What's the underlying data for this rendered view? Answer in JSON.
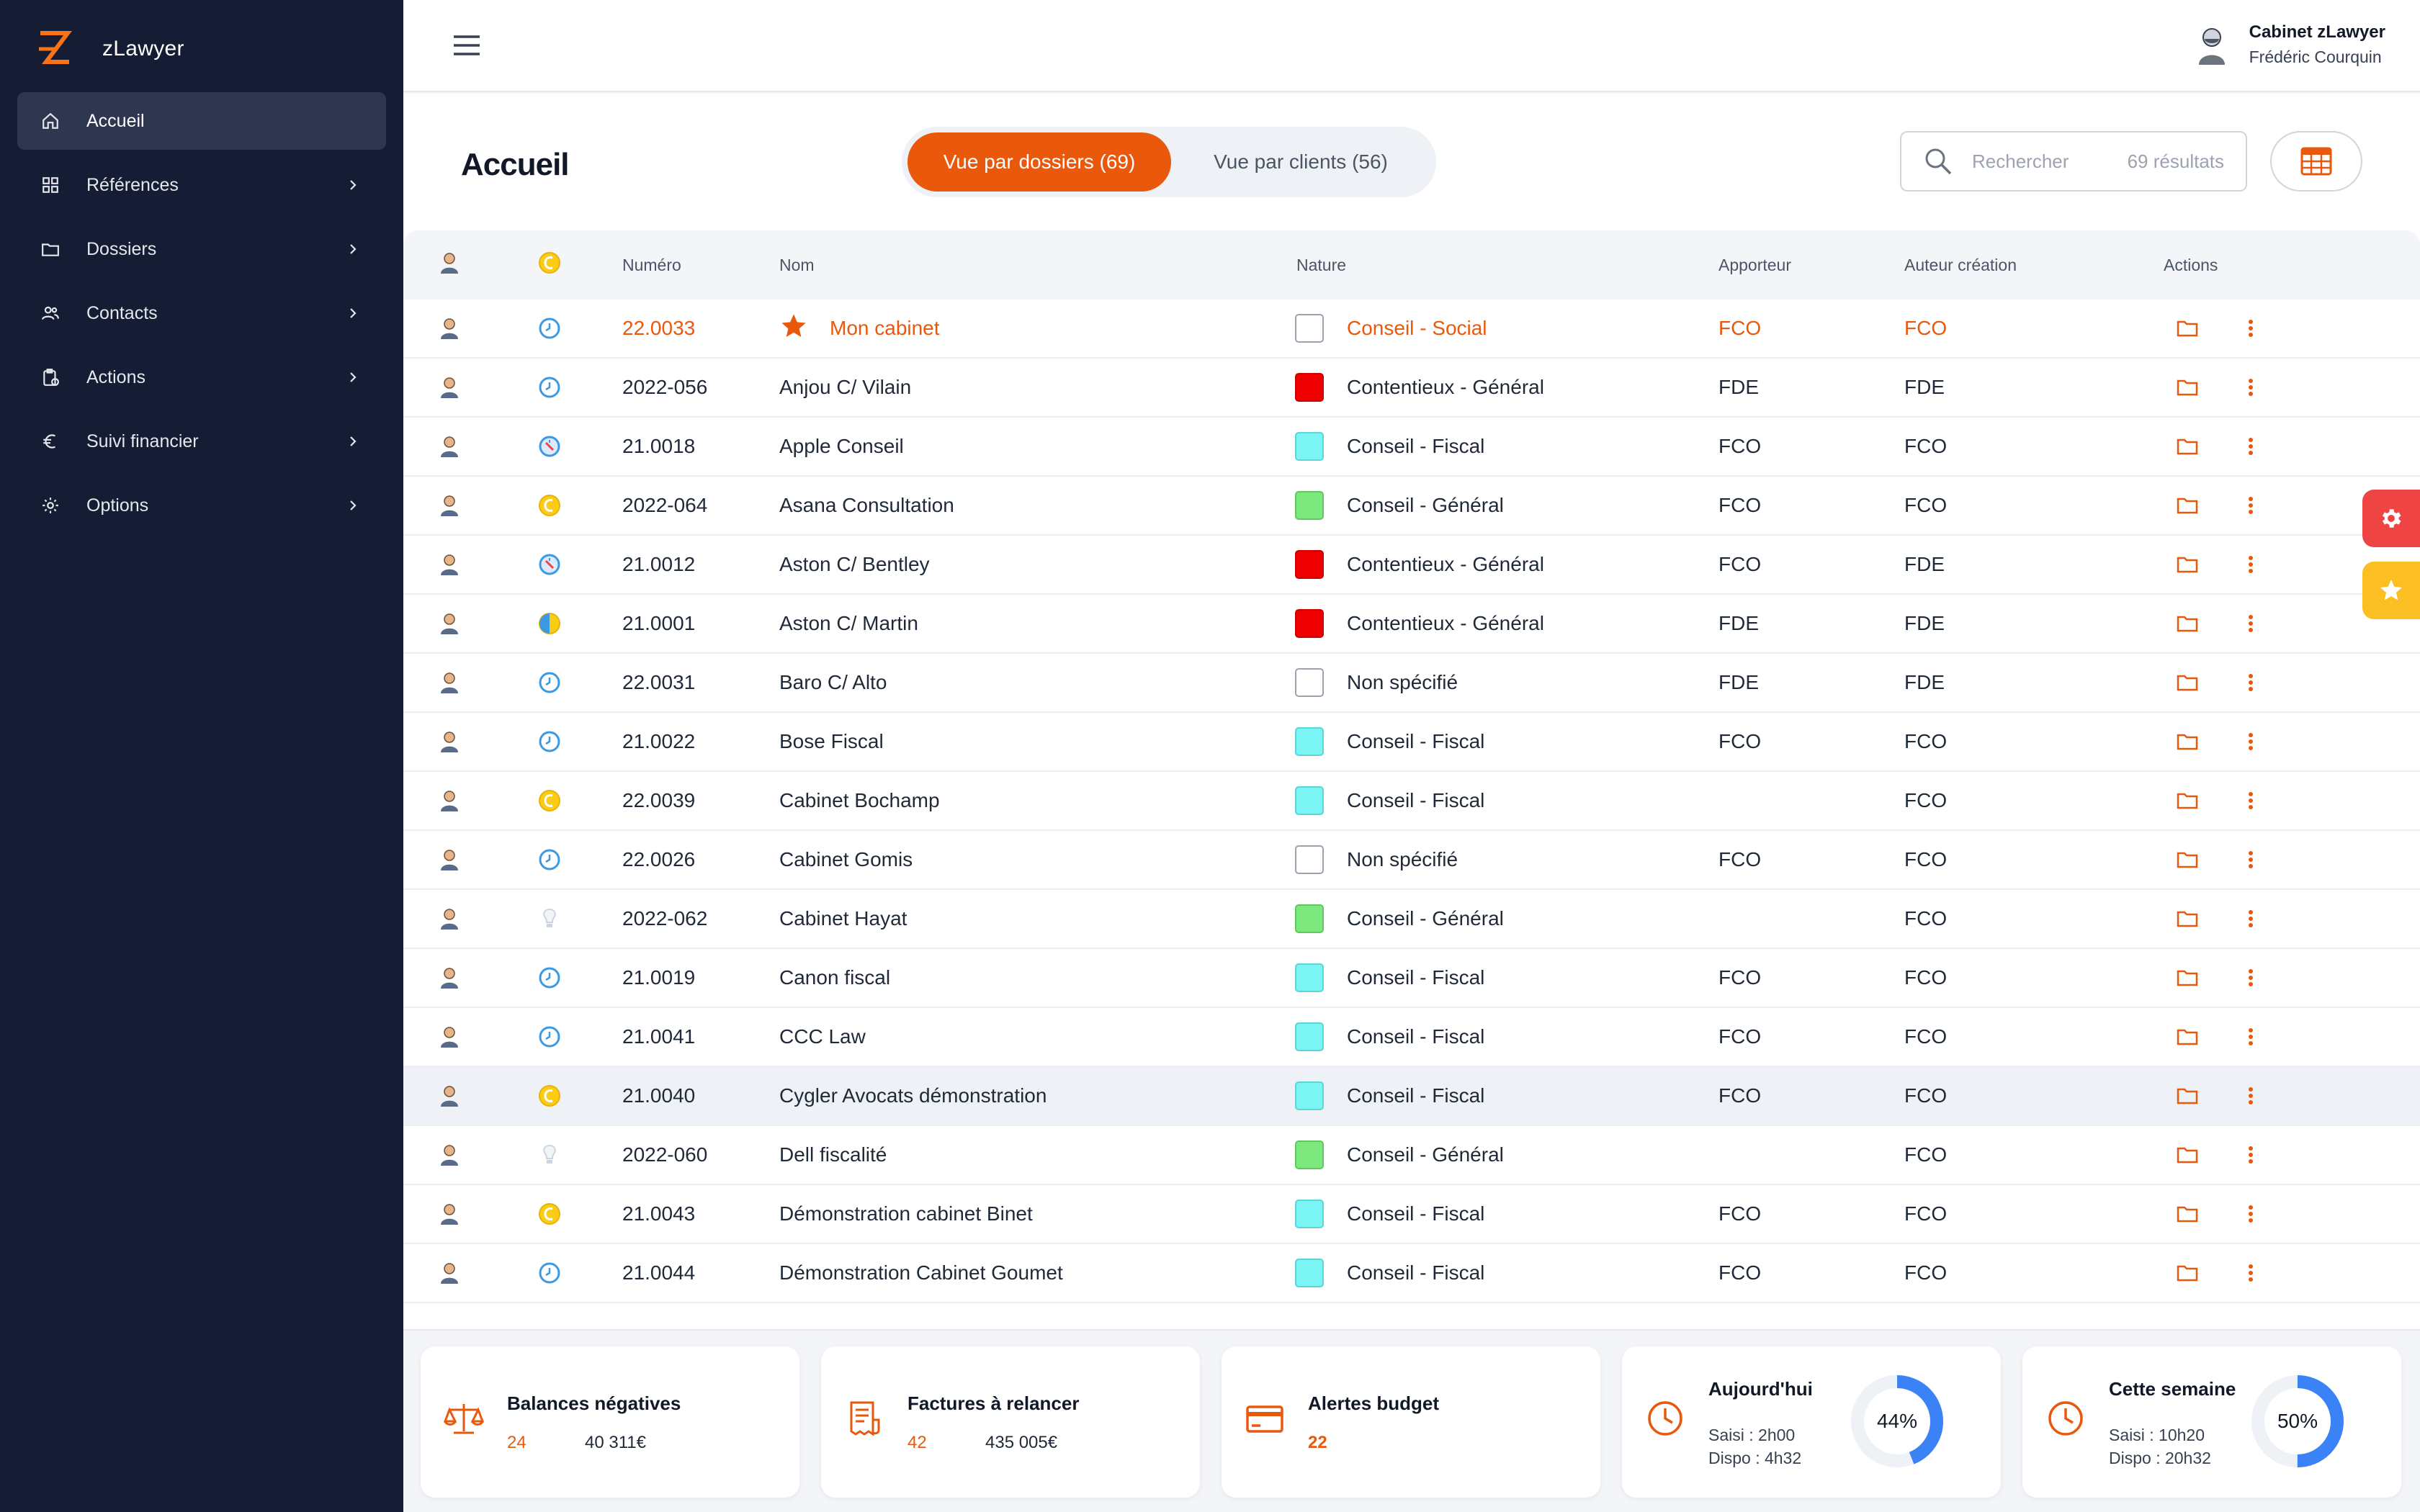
{
  "app": {
    "name": "zLawyer"
  },
  "colors": {
    "sidebar": "#151d35",
    "accent": "#ea580c",
    "primary_blue": "#3b82f6"
  },
  "sidebar": {
    "items": [
      {
        "label": "Accueil",
        "icon": "home-icon",
        "active": true
      },
      {
        "label": "Références",
        "icon": "grid-icon"
      },
      {
        "label": "Dossiers",
        "icon": "folder-icon"
      },
      {
        "label": "Contacts",
        "icon": "users-icon"
      },
      {
        "label": "Actions",
        "icon": "clipboard-icon"
      },
      {
        "label": "Suivi financier",
        "icon": "euro-icon"
      },
      {
        "label": "Options",
        "icon": "gear-icon"
      }
    ]
  },
  "header": {
    "cabinet": "Cabinet zLawyer",
    "user": "Frédéric Courquin"
  },
  "main": {
    "title": "Accueil",
    "tabs": [
      {
        "label": "Vue par dossiers (69)",
        "active": true
      },
      {
        "label": "Vue par clients (56)",
        "active": false
      }
    ],
    "search": {
      "placeholder": "Rechercher",
      "count": "69 résultats"
    }
  },
  "table": {
    "columns": {
      "numero": "Numéro",
      "nom": "Nom",
      "nature": "Nature",
      "apporteur": "Apporteur",
      "auteur": "Auteur création",
      "actions": "Actions"
    },
    "rows": [
      {
        "num": "22.0033",
        "nom": "Mon cabinet",
        "nature": "Conseil - Social",
        "color": "white",
        "apporteur": "FCO",
        "auteur": "FCO",
        "status": "clock",
        "own": true
      },
      {
        "num": "2022-056",
        "nom": "Anjou C/ Vilain",
        "nature": "Contentieux - Général",
        "color": "red",
        "apporteur": "FDE",
        "auteur": "FDE",
        "status": "clock"
      },
      {
        "num": "21.0018",
        "nom": "Apple Conseil",
        "nature": "Conseil - Fiscal",
        "color": "cyan",
        "apporteur": "FCO",
        "auteur": "FCO",
        "status": "compass"
      },
      {
        "num": "2022-064",
        "nom": "Asana Consultation",
        "nature": "Conseil - Général",
        "color": "green",
        "apporteur": "FCO",
        "auteur": "FCO",
        "status": "coin"
      },
      {
        "num": "21.0012",
        "nom": "Aston C/ Bentley",
        "nature": "Contentieux - Général",
        "color": "red",
        "apporteur": "FCO",
        "auteur": "FDE",
        "status": "compass"
      },
      {
        "num": "21.0001",
        "nom": "Aston C/ Martin",
        "nature": "Contentieux - Général",
        "color": "red",
        "apporteur": "FDE",
        "auteur": "FDE",
        "status": "coin-mixed"
      },
      {
        "num": "22.0031",
        "nom": "Baro C/ Alto",
        "nature": "Non spécifié",
        "color": "white",
        "apporteur": "FDE",
        "auteur": "FDE",
        "status": "clock"
      },
      {
        "num": "21.0022",
        "nom": "Bose Fiscal",
        "nature": "Conseil - Fiscal",
        "color": "cyan",
        "apporteur": "FCO",
        "auteur": "FCO",
        "status": "clock"
      },
      {
        "num": "22.0039",
        "nom": "Cabinet Bochamp",
        "nature": "Conseil - Fiscal",
        "color": "cyan",
        "apporteur": "",
        "auteur": "FCO",
        "status": "coin"
      },
      {
        "num": "22.0026",
        "nom": "Cabinet Gomis",
        "nature": "Non spécifié",
        "color": "white",
        "apporteur": "FCO",
        "auteur": "FCO",
        "status": "clock"
      },
      {
        "num": "2022-062",
        "nom": "Cabinet Hayat",
        "nature": "Conseil - Général",
        "color": "green",
        "apporteur": "",
        "auteur": "FCO",
        "status": "bulb"
      },
      {
        "num": "21.0019",
        "nom": "Canon fiscal",
        "nature": "Conseil - Fiscal",
        "color": "cyan",
        "apporteur": "FCO",
        "auteur": "FCO",
        "status": "clock"
      },
      {
        "num": "21.0041",
        "nom": "CCC Law",
        "nature": "Conseil - Fiscal",
        "color": "cyan",
        "apporteur": "FCO",
        "auteur": "FCO",
        "status": "clock"
      },
      {
        "num": "21.0040",
        "nom": "Cygler Avocats démonstration",
        "nature": "Conseil - Fiscal",
        "color": "cyan",
        "apporteur": "FCO",
        "auteur": "FCO",
        "status": "coin",
        "highlight": true
      },
      {
        "num": "2022-060",
        "nom": "Dell fiscalité",
        "nature": "Conseil - Général",
        "color": "green",
        "apporteur": "",
        "auteur": "FCO",
        "status": "bulb"
      },
      {
        "num": "21.0043",
        "nom": "Démonstration cabinet Binet",
        "nature": "Conseil - Fiscal",
        "color": "cyan",
        "apporteur": "FCO",
        "auteur": "FCO",
        "status": "coin"
      },
      {
        "num": "21.0044",
        "nom": "Démonstration Cabinet Goumet",
        "nature": "Conseil - Fiscal",
        "color": "cyan",
        "apporteur": "FCO",
        "auteur": "FCO",
        "status": "clock"
      }
    ]
  },
  "cards": {
    "balances": {
      "title": "Balances négatives",
      "count": "24",
      "amount": "40 311€"
    },
    "factures": {
      "title": "Factures à relancer",
      "count": "42",
      "amount": "435 005€"
    },
    "budget": {
      "title": "Alertes budget",
      "count": "22"
    },
    "today": {
      "title": "Aujourd'hui",
      "saisi": "Saisi : 2h00",
      "dispo": "Dispo : 4h32",
      "percent": "44%",
      "fraction": 0.44
    },
    "week": {
      "title": "Cette semaine",
      "saisi": "Saisi : 10h20",
      "dispo": "Dispo : 20h32",
      "percent": "50%",
      "fraction": 0.5
    }
  }
}
